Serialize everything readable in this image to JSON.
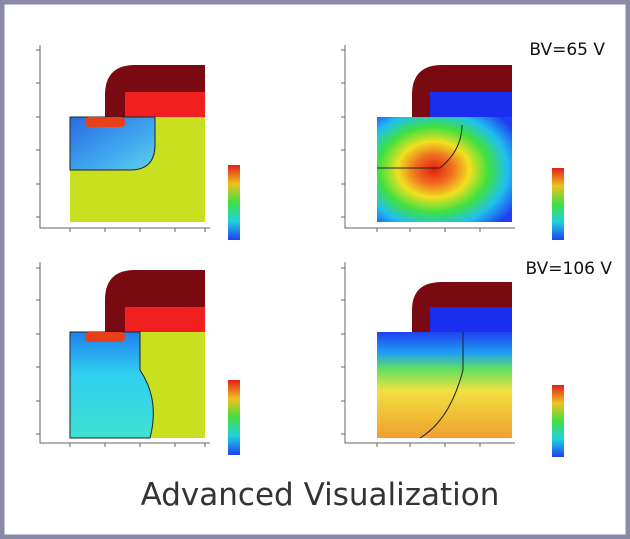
{
  "panels": [
    {
      "label": "BV=65 V"
    },
    {
      "label": "BV=106 V"
    }
  ],
  "title": "Advanced Visualization"
}
